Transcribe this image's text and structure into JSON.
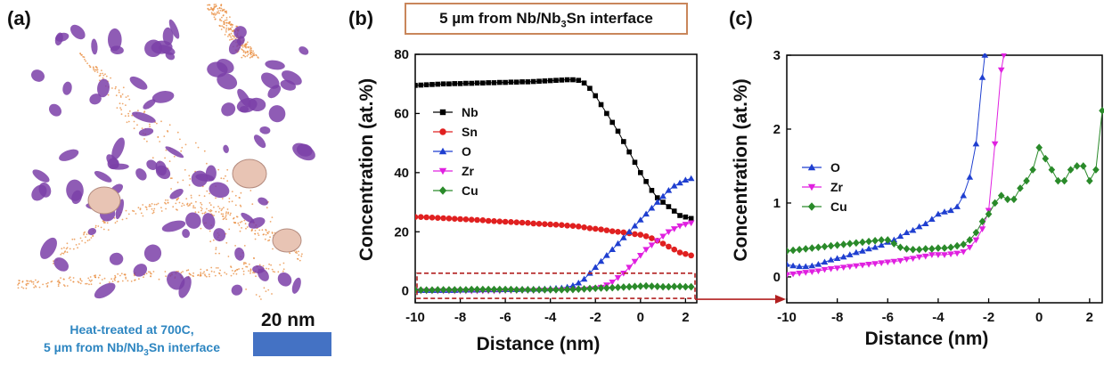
{
  "panel_labels": {
    "a": "(a)",
    "b": "(b)",
    "c": "(c)"
  },
  "header_box": {
    "pre": "5 µm from Nb/Nb",
    "sub": "3",
    "post": "Sn interface"
  },
  "figure_a": {
    "caption_line1": "Heat-treated at 700C,",
    "caption_line2_pre": "5 µm from Nb/Nb",
    "caption_line2_sub": "3",
    "caption_line2_post": "Sn interface",
    "scale_bar_label": "20 nm",
    "colors": {
      "precipitates": "#7b3fa8",
      "large_particles": "#e8c4b4",
      "sn_atoms": "#e8893a",
      "scale_bar": "#4472c4"
    }
  },
  "chart_data": [
    {
      "type": "line",
      "panel": "b",
      "xlabel": "Distance (nm)",
      "ylabel": "Concentration (at.%)",
      "xlim": [
        -10,
        2.5
      ],
      "ylim": [
        -4,
        80
      ],
      "xticks": [
        -10,
        -8,
        -6,
        -4,
        -2,
        0,
        2
      ],
      "yticks": [
        0,
        20,
        40,
        60,
        80
      ],
      "legend_position": "left-middle",
      "annotation": "dashed red box around y from -2 to 6 with arrow to panel (c)",
      "series": [
        {
          "name": "Nb",
          "color": "#000000",
          "marker": "square",
          "x": [
            -10,
            -9.75,
            -9.5,
            -9.25,
            -9,
            -8.75,
            -8.5,
            -8.25,
            -8,
            -7.75,
            -7.5,
            -7.25,
            -7,
            -6.75,
            -6.5,
            -6.25,
            -6,
            -5.75,
            -5.5,
            -5.25,
            -5,
            -4.75,
            -4.5,
            -4.25,
            -4,
            -3.75,
            -3.5,
            -3.25,
            -3,
            -2.75,
            -2.5,
            -2.25,
            -2,
            -1.75,
            -1.5,
            -1.25,
            -1,
            -0.75,
            -0.5,
            -0.25,
            0,
            0.25,
            0.5,
            0.75,
            1,
            1.25,
            1.5,
            1.75,
            2,
            2.25
          ],
          "y": [
            69.5,
            69.6,
            69.7,
            69.8,
            69.9,
            70,
            70,
            70.1,
            70.1,
            70.2,
            70.2,
            70.3,
            70.3,
            70.4,
            70.4,
            70.5,
            70.5,
            70.6,
            70.6,
            70.7,
            70.7,
            70.8,
            70.9,
            71,
            71.1,
            71.2,
            71.3,
            71.4,
            71.4,
            71.2,
            70.3,
            68.5,
            66,
            63,
            60,
            57,
            54,
            50.5,
            47,
            43.5,
            40,
            37,
            34,
            31.5,
            30,
            28.5,
            27,
            25.5,
            25,
            24.5
          ]
        },
        {
          "name": "Sn",
          "color": "#e02020",
          "marker": "circle",
          "x": [
            -10,
            -9.75,
            -9.5,
            -9.25,
            -9,
            -8.75,
            -8.5,
            -8.25,
            -8,
            -7.75,
            -7.5,
            -7.25,
            -7,
            -6.75,
            -6.5,
            -6.25,
            -6,
            -5.75,
            -5.5,
            -5.25,
            -5,
            -4.75,
            -4.5,
            -4.25,
            -4,
            -3.75,
            -3.5,
            -3.25,
            -3,
            -2.75,
            -2.5,
            -2.25,
            -2,
            -1.75,
            -1.5,
            -1.25,
            -1,
            -0.75,
            -0.5,
            -0.25,
            0,
            0.25,
            0.5,
            0.75,
            1,
            1.25,
            1.5,
            1.75,
            2,
            2.25
          ],
          "y": [
            25,
            25,
            24.9,
            24.8,
            24.7,
            24.6,
            24.5,
            24.4,
            24.3,
            24.2,
            24.1,
            24,
            23.9,
            23.7,
            23.6,
            23.5,
            23.4,
            23.3,
            23.2,
            23.1,
            23,
            22.8,
            22.7,
            22.6,
            22.5,
            22.4,
            22.3,
            22.1,
            22,
            21.8,
            21.5,
            21.2,
            21,
            20.8,
            20.5,
            20.2,
            20,
            19.8,
            19.5,
            19.2,
            19,
            18.5,
            17.8,
            17,
            16,
            15,
            14,
            13,
            12.5,
            12
          ]
        },
        {
          "name": "O",
          "color": "#1f3fd0",
          "marker": "triangle-up",
          "x": [
            -10,
            -9.75,
            -9.5,
            -9.25,
            -9,
            -8.75,
            -8.5,
            -8.25,
            -8,
            -7.75,
            -7.5,
            -7.25,
            -7,
            -6.75,
            -6.5,
            -6.25,
            -6,
            -5.75,
            -5.5,
            -5.25,
            -5,
            -4.75,
            -4.5,
            -4.25,
            -4,
            -3.75,
            -3.5,
            -3.25,
            -3,
            -2.75,
            -2.5,
            -2.25,
            -2,
            -1.75,
            -1.5,
            -1.25,
            -1,
            -0.75,
            -0.5,
            -0.25,
            0,
            0.25,
            0.5,
            0.75,
            1,
            1.25,
            1.5,
            1.75,
            2,
            2.25
          ],
          "y": [
            0.2,
            0.2,
            0.2,
            0.2,
            0.2,
            0.2,
            0.2,
            0.2,
            0.3,
            0.3,
            0.3,
            0.3,
            0.4,
            0.4,
            0.4,
            0.4,
            0.5,
            0.5,
            0.5,
            0.6,
            0.6,
            0.6,
            0.7,
            0.7,
            0.8,
            0.9,
            1,
            1.3,
            1.8,
            2.7,
            4,
            6,
            8,
            10,
            12,
            14,
            16,
            18,
            20,
            22,
            24,
            26,
            28,
            30,
            32,
            34,
            35.5,
            36.5,
            37.5,
            38
          ]
        },
        {
          "name": "Zr",
          "color": "#e020e0",
          "marker": "triangle-down",
          "x": [
            -10,
            -9.75,
            -9.5,
            -9.25,
            -9,
            -8.75,
            -8.5,
            -8.25,
            -8,
            -7.75,
            -7.5,
            -7.25,
            -7,
            -6.75,
            -6.5,
            -6.25,
            -6,
            -5.75,
            -5.5,
            -5.25,
            -5,
            -4.75,
            -4.5,
            -4.25,
            -4,
            -3.75,
            -3.5,
            -3.25,
            -3,
            -2.75,
            -2.5,
            -2.25,
            -2,
            -1.75,
            -1.5,
            -1.25,
            -1,
            -0.75,
            -0.5,
            -0.25,
            0,
            0.25,
            0.5,
            0.75,
            1,
            1.25,
            1.5,
            1.75,
            2,
            2.25
          ],
          "y": [
            0,
            0,
            0,
            0,
            0,
            0,
            0,
            0,
            0,
            0,
            0,
            0,
            0,
            0,
            0,
            0,
            0.1,
            0.1,
            0.1,
            0.1,
            0.1,
            0.1,
            0.2,
            0.2,
            0.2,
            0.2,
            0.3,
            0.3,
            0.3,
            0.4,
            0.5,
            0.6,
            0.8,
            1.2,
            2,
            3,
            4.5,
            6,
            8,
            10,
            12,
            14,
            15.5,
            17,
            18.5,
            20,
            21,
            22,
            22.5,
            23
          ]
        },
        {
          "name": "Cu",
          "color": "#2a8a2a",
          "marker": "diamond",
          "x": [
            -10,
            -9.75,
            -9.5,
            -9.25,
            -9,
            -8.75,
            -8.5,
            -8.25,
            -8,
            -7.75,
            -7.5,
            -7.25,
            -7,
            -6.75,
            -6.5,
            -6.25,
            -6,
            -5.75,
            -5.5,
            -5.25,
            -5,
            -4.75,
            -4.5,
            -4.25,
            -4,
            -3.75,
            -3.5,
            -3.25,
            -3,
            -2.75,
            -2.5,
            -2.25,
            -2,
            -1.75,
            -1.5,
            -1.25,
            -1,
            -0.75,
            -0.5,
            -0.25,
            0,
            0.25,
            0.5,
            0.75,
            1,
            1.25,
            1.5,
            1.75,
            2,
            2.25
          ],
          "y": [
            0.3,
            0.3,
            0.3,
            0.3,
            0.4,
            0.4,
            0.4,
            0.4,
            0.4,
            0.4,
            0.5,
            0.5,
            0.5,
            0.5,
            0.5,
            0.5,
            0.5,
            0.5,
            0.4,
            0.4,
            0.4,
            0.4,
            0.4,
            0.4,
            0.4,
            0.4,
            0.4,
            0.5,
            0.5,
            0.6,
            0.7,
            0.8,
            0.9,
            1,
            1,
            1.1,
            1.2,
            1.3,
            1.4,
            1.5,
            1.6,
            1.7,
            1.6,
            1.5,
            1.4,
            1.4,
            1.5,
            1.5,
            1.4,
            1.4
          ]
        }
      ]
    },
    {
      "type": "line",
      "panel": "c",
      "xlabel": "Distance (nm)",
      "ylabel": "Concentration (at.%)",
      "xlim": [
        -10,
        2.5
      ],
      "ylim": [
        -0.35,
        3
      ],
      "xticks": [
        -10,
        -8,
        -6,
        -4,
        -2,
        0,
        2
      ],
      "yticks": [
        0,
        1,
        2,
        3
      ],
      "legend_position": "left-middle",
      "series": [
        {
          "name": "O",
          "color": "#1f3fd0",
          "marker": "triangle-up",
          "x": [
            -10,
            -9.75,
            -9.5,
            -9.25,
            -9,
            -8.75,
            -8.5,
            -8.25,
            -8,
            -7.75,
            -7.5,
            -7.25,
            -7,
            -6.75,
            -6.5,
            -6.25,
            -6,
            -5.75,
            -5.5,
            -5.25,
            -5,
            -4.75,
            -4.5,
            -4.25,
            -4,
            -3.75,
            -3.5,
            -3.25,
            -3,
            -2.75,
            -2.5,
            -2.25,
            -2.15
          ],
          "y": [
            0.17,
            0.15,
            0.14,
            0.14,
            0.15,
            0.17,
            0.2,
            0.23,
            0.25,
            0.27,
            0.3,
            0.33,
            0.35,
            0.38,
            0.4,
            0.43,
            0.47,
            0.5,
            0.55,
            0.6,
            0.63,
            0.68,
            0.72,
            0.78,
            0.85,
            0.88,
            0.9,
            0.95,
            1.1,
            1.35,
            1.8,
            2.7,
            3.0
          ]
        },
        {
          "name": "Zr",
          "color": "#e020e0",
          "marker": "triangle-down",
          "x": [
            -10,
            -9.75,
            -9.5,
            -9.25,
            -9,
            -8.75,
            -8.5,
            -8.25,
            -8,
            -7.75,
            -7.5,
            -7.25,
            -7,
            -6.75,
            -6.5,
            -6.25,
            -6,
            -5.75,
            -5.5,
            -5.25,
            -5,
            -4.75,
            -4.5,
            -4.25,
            -4,
            -3.75,
            -3.5,
            -3.25,
            -3,
            -2.75,
            -2.5,
            -2.25,
            -2,
            -1.75,
            -1.5,
            -1.4
          ],
          "y": [
            0.03,
            0.04,
            0.05,
            0.06,
            0.07,
            0.08,
            0.1,
            0.11,
            0.12,
            0.13,
            0.14,
            0.15,
            0.16,
            0.17,
            0.18,
            0.19,
            0.2,
            0.21,
            0.22,
            0.24,
            0.25,
            0.27,
            0.28,
            0.3,
            0.3,
            0.3,
            0.31,
            0.32,
            0.34,
            0.4,
            0.5,
            0.65,
            0.9,
            1.8,
            2.8,
            3.0
          ]
        },
        {
          "name": "Cu",
          "color": "#2a8a2a",
          "marker": "diamond",
          "x": [
            -10,
            -9.75,
            -9.5,
            -9.25,
            -9,
            -8.75,
            -8.5,
            -8.25,
            -8,
            -7.75,
            -7.5,
            -7.25,
            -7,
            -6.75,
            -6.5,
            -6.25,
            -6,
            -5.75,
            -5.5,
            -5.25,
            -5,
            -4.75,
            -4.5,
            -4.25,
            -4,
            -3.75,
            -3.5,
            -3.25,
            -3,
            -2.75,
            -2.5,
            -2.25,
            -2,
            -1.75,
            -1.5,
            -1.25,
            -1,
            -0.75,
            -0.5,
            -0.25,
            0,
            0.25,
            0.5,
            0.75,
            1,
            1.25,
            1.5,
            1.75,
            2,
            2.25,
            2.5
          ],
          "y": [
            0.35,
            0.36,
            0.37,
            0.38,
            0.39,
            0.4,
            0.41,
            0.42,
            0.43,
            0.44,
            0.45,
            0.46,
            0.47,
            0.48,
            0.49,
            0.5,
            0.5,
            0.45,
            0.4,
            0.38,
            0.37,
            0.37,
            0.38,
            0.38,
            0.39,
            0.39,
            0.4,
            0.42,
            0.44,
            0.5,
            0.6,
            0.75,
            0.85,
            1.0,
            1.1,
            1.05,
            1.05,
            1.2,
            1.3,
            1.45,
            1.75,
            1.6,
            1.45,
            1.3,
            1.3,
            1.45,
            1.5,
            1.5,
            1.3,
            1.45,
            2.25
          ]
        }
      ]
    }
  ]
}
